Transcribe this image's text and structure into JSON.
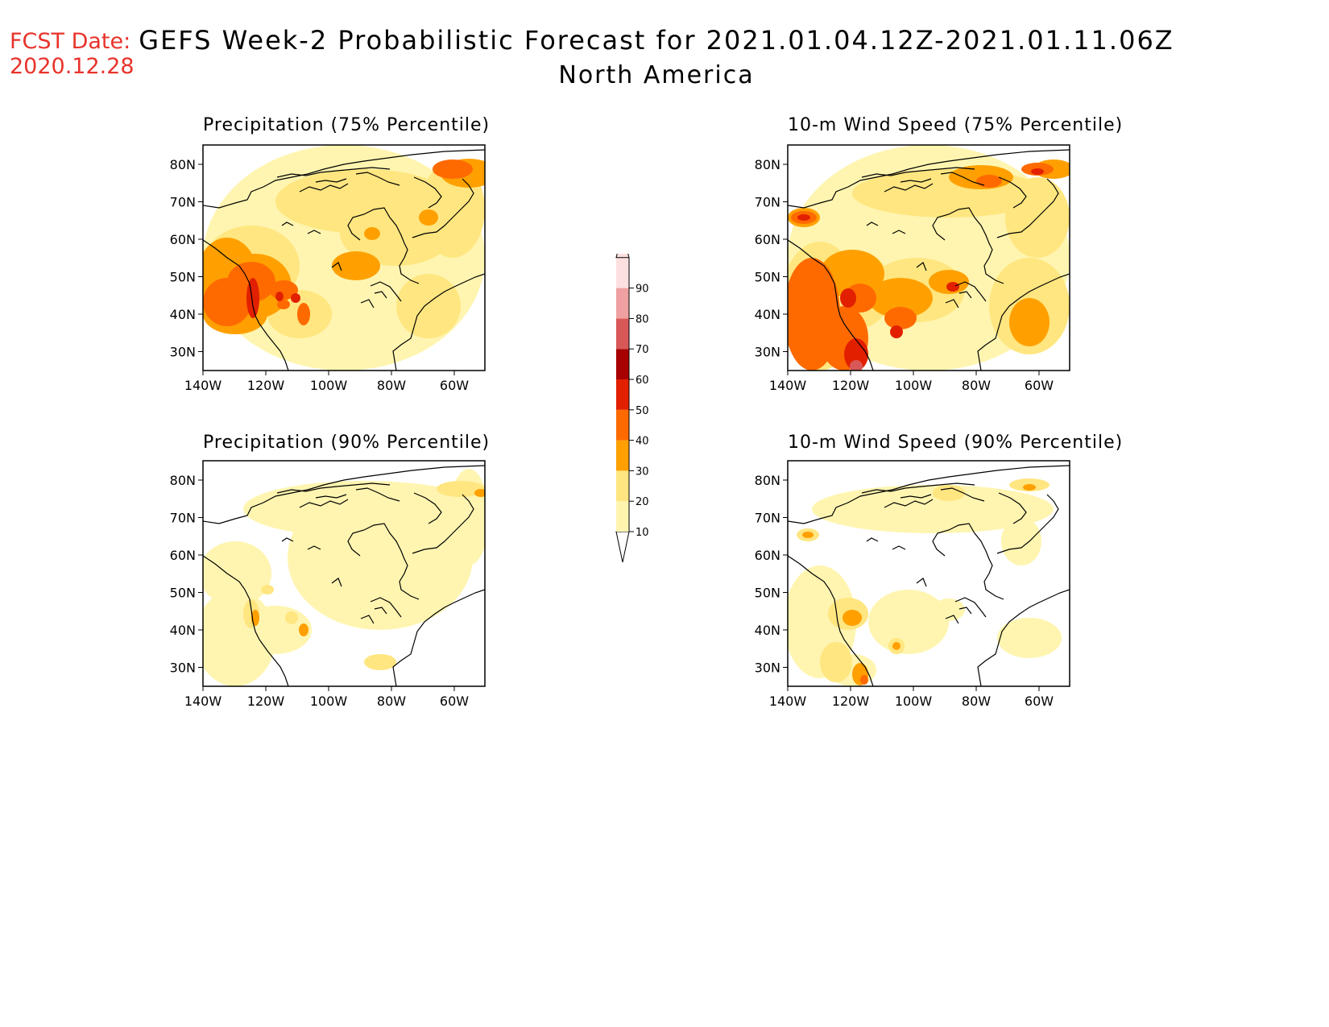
{
  "header": {
    "fcst_label": "FCST Date:",
    "fcst_date": "2020.12.28",
    "title": "GEFS Week-2 Probabilistic Forecast for 2021.01.04.12Z-2021.01.11.06Z",
    "subtitle": "North America"
  },
  "axes": {
    "lon_ticks": [
      "140W",
      "120W",
      "100W",
      "80W",
      "60W"
    ],
    "lat_ticks": [
      "80N",
      "70N",
      "60N",
      "50N",
      "40N",
      "30N"
    ]
  },
  "colorbar": {
    "levels": [
      "10",
      "20",
      "30",
      "40",
      "50",
      "60",
      "70",
      "80",
      "90"
    ],
    "colors": [
      "#fff5b0",
      "#ffe680",
      "#ffa000",
      "#ff6a00",
      "#e22000",
      "#a80000",
      "#d85858",
      "#f0a0a0",
      "#fce0e0"
    ]
  },
  "panels": [
    {
      "id": "precip75",
      "title": "Precipitation (75% Percentile)"
    },
    {
      "id": "wind75",
      "title": "10-m Wind Speed (75% Percentile)"
    },
    {
      "id": "precip90",
      "title": "Precipitation (90% Percentile)"
    },
    {
      "id": "wind90",
      "title": "10-m Wind Speed (90% Percentile)"
    }
  ],
  "colors": {
    "header_accent": "#e8332b",
    "background": "#ffffff",
    "coastline": "#000000"
  }
}
